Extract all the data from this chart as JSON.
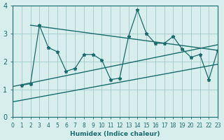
{
  "xlabel": "Humidex (Indice chaleur)",
  "ylabel": "",
  "bg_color": "#d7eeed",
  "line_color": "#1a6b6b",
  "grid_color": "#a0c8c8",
  "xlim": [
    0,
    23
  ],
  "ylim": [
    0,
    4
  ],
  "xticks": [
    0,
    1,
    2,
    3,
    4,
    5,
    6,
    7,
    8,
    9,
    10,
    11,
    12,
    13,
    14,
    15,
    16,
    17,
    18,
    19,
    20,
    21,
    22,
    23
  ],
  "yticks": [
    0,
    1,
    2,
    3,
    4
  ],
  "main_x": [
    1,
    2,
    3,
    4,
    5,
    6,
    7,
    8,
    9,
    10,
    11,
    12,
    13,
    14,
    15,
    16,
    17,
    18,
    19,
    20,
    21,
    22,
    23
  ],
  "main_y": [
    1.15,
    1.2,
    3.3,
    2.5,
    2.35,
    1.65,
    1.75,
    2.25,
    2.25,
    2.05,
    1.35,
    1.4,
    2.9,
    3.85,
    3.0,
    2.65,
    2.65,
    2.9,
    2.45,
    2.15,
    2.25,
    1.35,
    2.4
  ],
  "trend1_x": [
    0,
    23
  ],
  "trend1_y": [
    1.1,
    2.6
  ],
  "trend2_x": [
    0,
    23
  ],
  "trend2_y": [
    0.55,
    1.9
  ],
  "trend3_x": [
    2,
    23
  ],
  "trend3_y": [
    3.3,
    2.4
  ]
}
